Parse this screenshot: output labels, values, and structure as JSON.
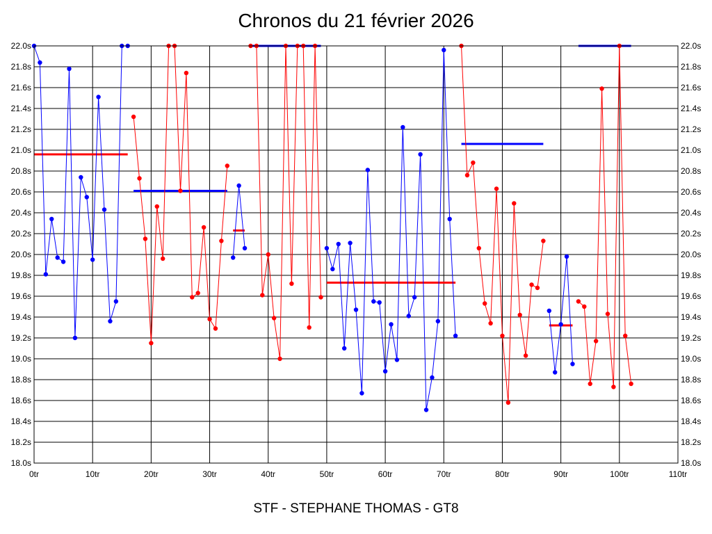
{
  "chart_data": {
    "type": "line",
    "title": "Chronos du 21 février 2026",
    "subtitle": "STF - STEPHANE THOMAS - GT8",
    "x_unit": "tr",
    "y_unit": "s",
    "xlim": [
      0,
      110
    ],
    "ylim": [
      18.0,
      22.0
    ],
    "x_ticks": [
      0,
      10,
      20,
      30,
      40,
      50,
      60,
      70,
      80,
      90,
      100,
      110
    ],
    "y_ticks": [
      18.0,
      18.2,
      18.4,
      18.6,
      18.8,
      19.0,
      19.2,
      19.4,
      19.6,
      19.8,
      20.0,
      20.2,
      20.4,
      20.6,
      20.8,
      21.0,
      21.2,
      21.4,
      21.6,
      21.8,
      22.0
    ],
    "y_axis_both_sides": true,
    "grid": true,
    "series": [
      {
        "color": "#0000ff",
        "kind": "laps",
        "points": [
          [
            0,
            22.0
          ],
          [
            1,
            21.84
          ],
          [
            2,
            19.81
          ],
          [
            3,
            20.34
          ],
          [
            4,
            19.97
          ],
          [
            5,
            19.93
          ],
          [
            6,
            21.78
          ],
          [
            7,
            19.2
          ],
          [
            8,
            20.74
          ],
          [
            9,
            20.55
          ],
          [
            10,
            19.95
          ],
          [
            11,
            21.51
          ],
          [
            12,
            20.43
          ],
          [
            13,
            19.36
          ],
          [
            14,
            19.55
          ],
          [
            15,
            22.0
          ],
          [
            16,
            22.0
          ]
        ]
      },
      {
        "color": "#ff0000",
        "kind": "laps",
        "points": [
          [
            17,
            21.32
          ],
          [
            18,
            20.73
          ],
          [
            19,
            20.15
          ],
          [
            20,
            19.15
          ],
          [
            21,
            20.46
          ],
          [
            22,
            19.96
          ],
          [
            23,
            22.0
          ],
          [
            24,
            22.0
          ],
          [
            25,
            20.61
          ],
          [
            26,
            21.74
          ],
          [
            27,
            19.59
          ],
          [
            28,
            19.63
          ],
          [
            29,
            20.26
          ],
          [
            30,
            19.38
          ],
          [
            31,
            19.29
          ],
          [
            32,
            20.13
          ],
          [
            33,
            20.85
          ]
        ]
      },
      {
        "color": "#0000ff",
        "kind": "laps",
        "points": [
          [
            34,
            19.97
          ],
          [
            35,
            20.66
          ],
          [
            36,
            20.06
          ]
        ]
      },
      {
        "color": "#ff0000",
        "kind": "laps",
        "points": [
          [
            37,
            22.0
          ],
          [
            38,
            22.0
          ],
          [
            39,
            19.61
          ],
          [
            40,
            20.0
          ],
          [
            41,
            19.39
          ],
          [
            42,
            19.0
          ],
          [
            43,
            22.0
          ],
          [
            44,
            19.72
          ],
          [
            45,
            22.0
          ],
          [
            46,
            22.0
          ],
          [
            47,
            19.3
          ],
          [
            48,
            22.0
          ],
          [
            49,
            19.59
          ]
        ]
      },
      {
        "color": "#0000ff",
        "kind": "laps",
        "points": [
          [
            50,
            20.06
          ],
          [
            51,
            19.86
          ],
          [
            52,
            20.1
          ],
          [
            53,
            19.1
          ],
          [
            54,
            20.11
          ],
          [
            55,
            19.47
          ],
          [
            56,
            18.67
          ],
          [
            57,
            20.81
          ],
          [
            58,
            19.55
          ],
          [
            59,
            19.54
          ],
          [
            60,
            18.88
          ],
          [
            61,
            19.33
          ],
          [
            62,
            18.99
          ],
          [
            63,
            21.22
          ],
          [
            64,
            19.41
          ],
          [
            65,
            19.59
          ],
          [
            66,
            20.96
          ],
          [
            67,
            18.51
          ],
          [
            68,
            18.82
          ],
          [
            69,
            19.36
          ],
          [
            70,
            21.96
          ],
          [
            71,
            20.34
          ],
          [
            72,
            19.22
          ]
        ]
      },
      {
        "color": "#ff0000",
        "kind": "laps",
        "points": [
          [
            73,
            22.0
          ],
          [
            74,
            20.76
          ],
          [
            75,
            20.88
          ],
          [
            76,
            20.06
          ],
          [
            77,
            19.53
          ],
          [
            78,
            19.34
          ],
          [
            79,
            20.63
          ],
          [
            80,
            19.22
          ],
          [
            81,
            18.58
          ],
          [
            82,
            20.49
          ],
          [
            83,
            19.42
          ],
          [
            84,
            19.03
          ],
          [
            85,
            19.71
          ],
          [
            86,
            19.68
          ],
          [
            87,
            20.13
          ]
        ]
      },
      {
        "color": "#0000ff",
        "kind": "laps",
        "points": [
          [
            88,
            19.46
          ],
          [
            89,
            18.87
          ],
          [
            90,
            19.33
          ],
          [
            91,
            19.98
          ],
          [
            92,
            18.95
          ]
        ]
      },
      {
        "color": "#ff0000",
        "kind": "laps",
        "points": [
          [
            93,
            19.55
          ],
          [
            94,
            19.5
          ],
          [
            95,
            18.76
          ],
          [
            96,
            19.17
          ],
          [
            97,
            21.59
          ],
          [
            98,
            19.43
          ],
          [
            99,
            18.73
          ],
          [
            100,
            22.0
          ],
          [
            101,
            19.22
          ],
          [
            102,
            18.76
          ]
        ]
      },
      {
        "color": "#ff0000",
        "kind": "average",
        "x0": 0,
        "x1": 16,
        "y": 20.96
      },
      {
        "color": "#0000ff",
        "kind": "average",
        "x0": 17,
        "x1": 33,
        "y": 20.61
      },
      {
        "color": "#ff0000",
        "kind": "average",
        "x0": 34,
        "x1": 36,
        "y": 20.23
      },
      {
        "color": "#0000ff",
        "kind": "average",
        "x0": 37,
        "x1": 49,
        "y": 22.0
      },
      {
        "color": "#ff0000",
        "kind": "average",
        "x0": 50,
        "x1": 72,
        "y": 19.73
      },
      {
        "color": "#0000ff",
        "kind": "average",
        "x0": 73,
        "x1": 87,
        "y": 21.06
      },
      {
        "color": "#ff0000",
        "kind": "average",
        "x0": 88,
        "x1": 92,
        "y": 19.32
      },
      {
        "color": "#0000ff",
        "kind": "average",
        "x0": 93,
        "x1": 102,
        "y": 22.0
      }
    ]
  }
}
